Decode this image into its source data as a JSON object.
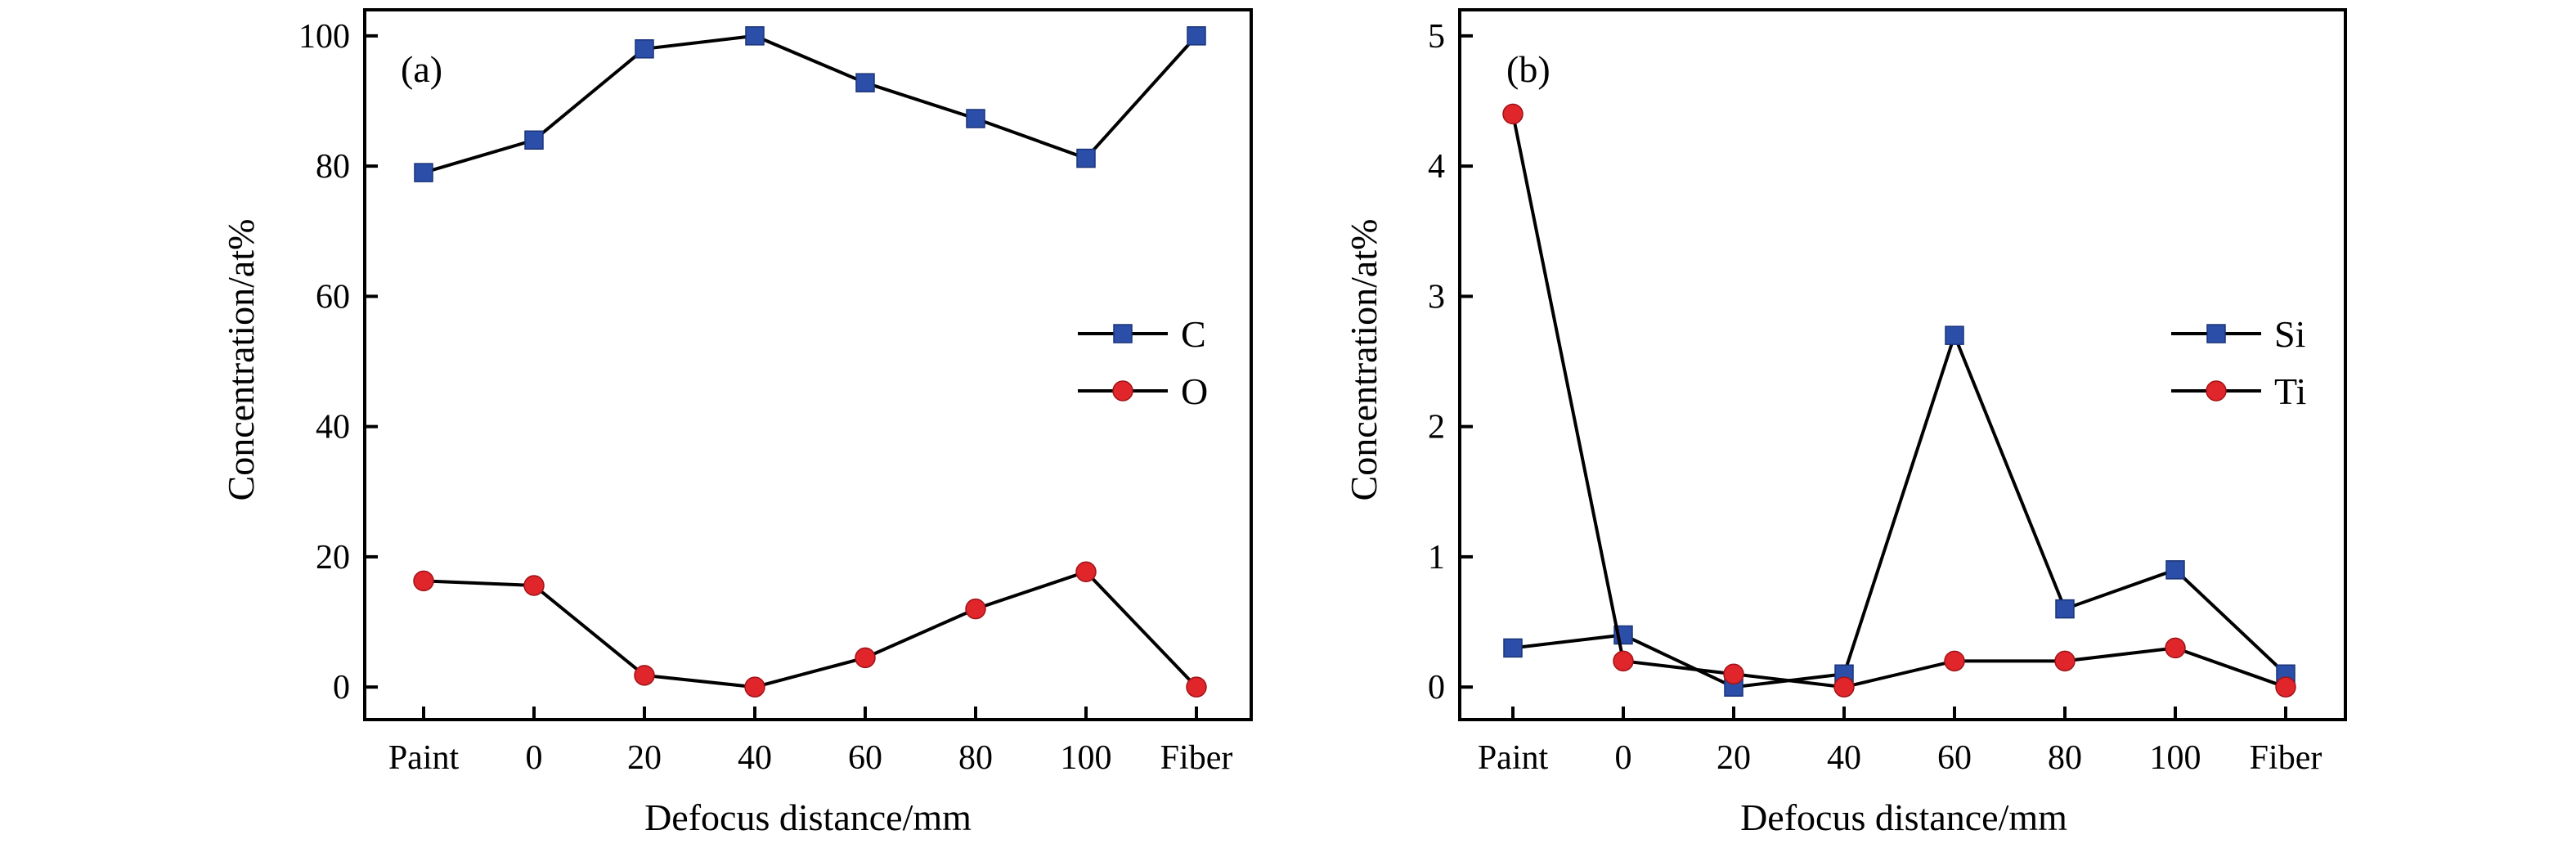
{
  "chart_data": [
    {
      "type": "line",
      "panel_label": "(a)",
      "categories": [
        "Paint",
        "0",
        "20",
        "40",
        "60",
        "80",
        "100",
        "Fiber"
      ],
      "xlabel": "Defocus distance/mm",
      "ylabel": "Concentration/at%",
      "ylim": [
        -5,
        104
      ],
      "yticks": [
        "0",
        "20",
        "40",
        "60",
        "80",
        "100"
      ],
      "legend_position": "center-right",
      "grid": false,
      "series": [
        {
          "name": "C",
          "values": [
            79,
            84,
            98,
            100,
            92.8,
            87.3,
            81.2,
            100
          ],
          "color": "#2b4ea8",
          "marker": "square"
        },
        {
          "name": "O",
          "values": [
            16.3,
            15.6,
            1.8,
            0,
            4.5,
            12,
            17.7,
            0
          ],
          "color": "#e0252b",
          "marker": "circle"
        }
      ]
    },
    {
      "type": "line",
      "panel_label": "(b)",
      "categories": [
        "Paint",
        "0",
        "20",
        "40",
        "60",
        "80",
        "100",
        "Fiber"
      ],
      "xlabel": "Defocus distance/mm",
      "ylabel": "Concentration/at%",
      "ylim": [
        -0.25,
        5.2
      ],
      "yticks": [
        "0",
        "1",
        "2",
        "3",
        "4",
        "5"
      ],
      "legend_position": "center-right",
      "grid": false,
      "series": [
        {
          "name": "Si",
          "values": [
            0.3,
            0.4,
            0,
            0.1,
            2.7,
            0.6,
            0.9,
            0.1
          ],
          "color": "#2b4ea8",
          "marker": "square"
        },
        {
          "name": "Ti",
          "values": [
            4.4,
            0.2,
            0.1,
            0,
            0.2,
            0.2,
            0.3,
            0
          ],
          "color": "#e0252b",
          "marker": "circle"
        }
      ]
    }
  ]
}
